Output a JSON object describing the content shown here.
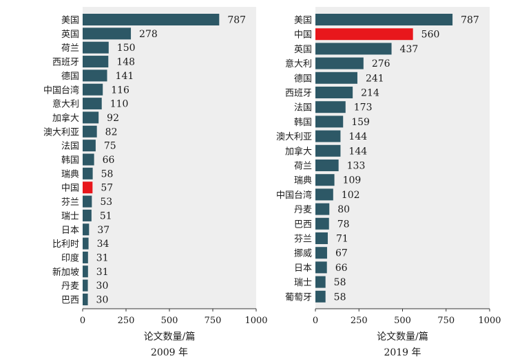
{
  "chart_data": [
    {
      "type": "bar",
      "orientation": "horizontal",
      "title": "",
      "xlabel": "论文数量/篇",
      "year_label": "2009 年",
      "xlim": [
        0,
        1000
      ],
      "xticks": [
        0,
        250,
        500,
        750,
        1000
      ],
      "grid": false,
      "colors": {
        "default": "#2d5866",
        "highlight": "#e8171c",
        "panel": "#eeeeee"
      },
      "highlight": "中国",
      "categories": [
        "美国",
        "英国",
        "荷兰",
        "西班牙",
        "德国",
        "中国台湾",
        "意大利",
        "加拿大",
        "澳大利亚",
        "法国",
        "韩国",
        "瑞典",
        "中国",
        "芬兰",
        "瑞士",
        "日本",
        "比利时",
        "印度",
        "新加坡",
        "丹麦",
        "巴西"
      ],
      "values": [
        787,
        278,
        150,
        148,
        141,
        116,
        110,
        92,
        82,
        75,
        66,
        58,
        57,
        53,
        51,
        37,
        34,
        31,
        31,
        30,
        30
      ]
    },
    {
      "type": "bar",
      "orientation": "horizontal",
      "title": "",
      "xlabel": "论文数量/篇",
      "year_label": "2019 年",
      "xlim": [
        0,
        1000
      ],
      "xticks": [
        0,
        250,
        500,
        750,
        1000
      ],
      "grid": false,
      "colors": {
        "default": "#2d5866",
        "highlight": "#e8171c",
        "panel": "#eeeeee"
      },
      "highlight": "中国",
      "categories": [
        "美国",
        "中国",
        "英国",
        "意大利",
        "德国",
        "西班牙",
        "法国",
        "韩国",
        "澳大利亚",
        "加拿大",
        "荷兰",
        "瑞典",
        "中国台湾",
        "丹麦",
        "巴西",
        "芬兰",
        "挪威",
        "日本",
        "瑞士",
        "葡萄牙"
      ],
      "values": [
        787,
        560,
        437,
        276,
        241,
        214,
        173,
        159,
        144,
        144,
        133,
        109,
        102,
        80,
        78,
        71,
        67,
        66,
        58,
        58
      ]
    }
  ]
}
